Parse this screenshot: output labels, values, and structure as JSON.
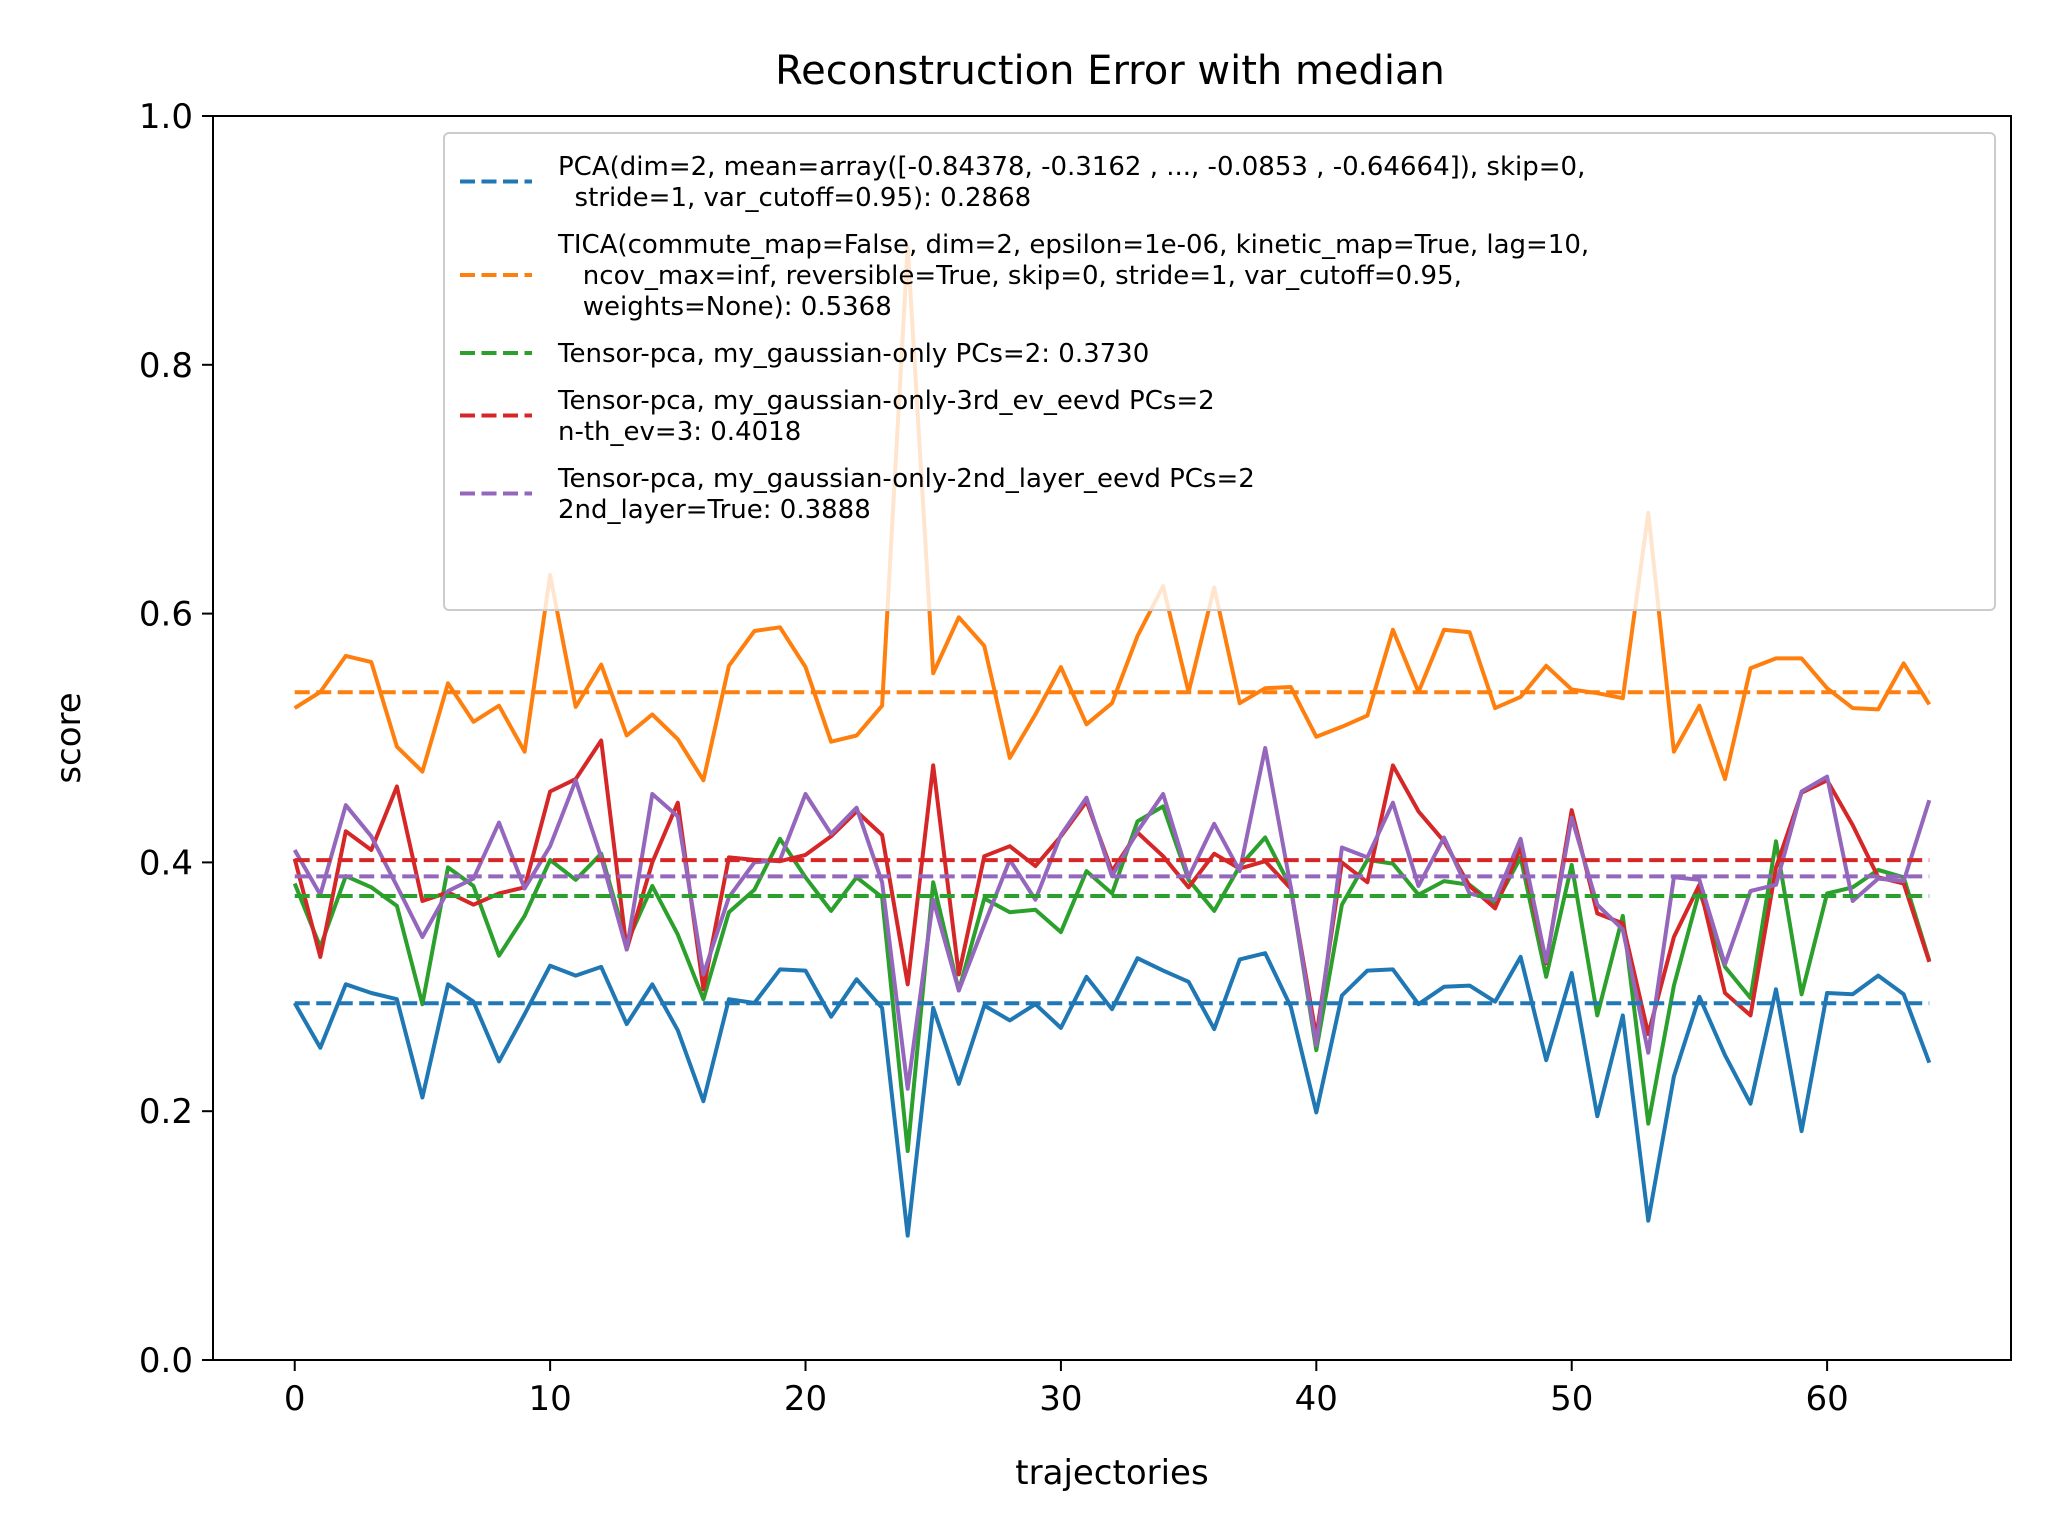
{
  "chart_data": {
    "type": "line",
    "title": "Reconstruction Error with median",
    "xlabel": "trajectories",
    "ylabel": "score",
    "xlim": [
      -3.2,
      67.2
    ],
    "ylim": [
      0.0,
      1.0
    ],
    "xticks": [
      0,
      10,
      20,
      30,
      40,
      50,
      60
    ],
    "yticks": [
      0.0,
      0.2,
      0.4,
      0.6,
      0.8,
      1.0
    ],
    "xtick_labels": [
      "0",
      "10",
      "20",
      "30",
      "40",
      "50",
      "60"
    ],
    "ytick_labels": [
      "0.0",
      "0.2",
      "0.4",
      "0.6",
      "0.8",
      "1.0"
    ],
    "grid": false,
    "legend_position": "top-right",
    "colors": {
      "blue": "#1f77b4",
      "orange": "#ff7f0e",
      "green": "#2ca02c",
      "red": "#d62728",
      "purple": "#9467bd"
    },
    "x": [
      0,
      1,
      2,
      3,
      4,
      5,
      6,
      7,
      8,
      9,
      10,
      11,
      12,
      13,
      14,
      15,
      16,
      17,
      18,
      19,
      20,
      21,
      22,
      23,
      24,
      25,
      26,
      27,
      28,
      29,
      30,
      31,
      32,
      33,
      34,
      35,
      36,
      37,
      38,
      39,
      40,
      41,
      42,
      43,
      44,
      45,
      46,
      47,
      48,
      49,
      50,
      51,
      52,
      53,
      54,
      55,
      56,
      57,
      58,
      59,
      60,
      61,
      62,
      63,
      64
    ],
    "series": [
      {
        "color": "#1f77b4",
        "median": 0.2868,
        "legend": [
          "PCA(dim=2, mean=array([-0.84378, -0.3162 , ..., -0.0853 , -0.64664]), skip=0,",
          "  stride=1, var_cutoff=0.95): 0.2868"
        ],
        "values": [
          0.287,
          0.251,
          0.302,
          0.295,
          0.29,
          0.211,
          0.302,
          0.288,
          0.24,
          0.278,
          0.317,
          0.309,
          0.316,
          0.27,
          0.302,
          0.265,
          0.208,
          0.29,
          0.287,
          0.314,
          0.313,
          0.276,
          0.306,
          0.283,
          0.1,
          0.283,
          0.222,
          0.285,
          0.273,
          0.286,
          0.267,
          0.308,
          0.282,
          0.323,
          0.313,
          0.304,
          0.266,
          0.322,
          0.327,
          0.284,
          0.199,
          0.293,
          0.313,
          0.314,
          0.286,
          0.3,
          0.301,
          0.288,
          0.324,
          0.241,
          0.311,
          0.196,
          0.277,
          0.112,
          0.228,
          0.292,
          0.245,
          0.206,
          0.298,
          0.184,
          0.295,
          0.294,
          0.309,
          0.294,
          0.239
        ]
      },
      {
        "color": "#ff7f0e",
        "median": 0.5368,
        "legend": [
          "TICA(commute_map=False, dim=2, epsilon=1e-06, kinetic_map=True, lag=10,",
          "   ncov_max=inf, reversible=True, skip=0, stride=1, var_cutoff=0.95,",
          "   weights=None): 0.5368"
        ],
        "values": [
          0.524,
          0.537,
          0.566,
          0.561,
          0.493,
          0.473,
          0.544,
          0.513,
          0.526,
          0.489,
          0.631,
          0.525,
          0.559,
          0.502,
          0.519,
          0.499,
          0.466,
          0.558,
          0.586,
          0.589,
          0.557,
          0.497,
          0.502,
          0.526,
          0.895,
          0.552,
          0.597,
          0.574,
          0.484,
          0.519,
          0.557,
          0.511,
          0.528,
          0.582,
          0.622,
          0.537,
          0.621,
          0.528,
          0.54,
          0.541,
          0.501,
          0.509,
          0.518,
          0.587,
          0.537,
          0.587,
          0.585,
          0.524,
          0.533,
          0.558,
          0.539,
          0.536,
          0.532,
          0.681,
          0.489,
          0.526,
          0.467,
          0.556,
          0.564,
          0.564,
          0.54,
          0.524,
          0.523,
          0.56,
          0.527
        ]
      },
      {
        "color": "#2ca02c",
        "median": 0.373,
        "legend": [
          "Tensor-pca, my_gaussian-only PCs=2: 0.3730"
        ],
        "values": [
          0.383,
          0.332,
          0.389,
          0.38,
          0.365,
          0.286,
          0.396,
          0.381,
          0.325,
          0.357,
          0.402,
          0.386,
          0.407,
          0.335,
          0.381,
          0.342,
          0.29,
          0.36,
          0.378,
          0.419,
          0.388,
          0.361,
          0.388,
          0.372,
          0.168,
          0.384,
          0.297,
          0.371,
          0.36,
          0.362,
          0.344,
          0.393,
          0.375,
          0.433,
          0.445,
          0.386,
          0.361,
          0.397,
          0.42,
          0.38,
          0.249,
          0.366,
          0.402,
          0.399,
          0.374,
          0.385,
          0.382,
          0.366,
          0.404,
          0.308,
          0.398,
          0.277,
          0.357,
          0.19,
          0.301,
          0.377,
          0.316,
          0.291,
          0.417,
          0.294,
          0.375,
          0.38,
          0.394,
          0.388,
          0.321
        ]
      },
      {
        "color": "#d62728",
        "median": 0.4018,
        "legend": [
          "Tensor-pca, my_gaussian-only-3rd_ev_eevd PCs=2",
          "n-th_ev=3: 0.4018"
        ],
        "values": [
          0.403,
          0.324,
          0.425,
          0.41,
          0.461,
          0.369,
          0.376,
          0.366,
          0.375,
          0.38,
          0.457,
          0.467,
          0.498,
          0.33,
          0.4,
          0.448,
          0.298,
          0.404,
          0.402,
          0.401,
          0.406,
          0.421,
          0.441,
          0.422,
          0.302,
          0.478,
          0.31,
          0.405,
          0.413,
          0.397,
          0.421,
          0.449,
          0.393,
          0.424,
          0.405,
          0.38,
          0.407,
          0.395,
          0.401,
          0.379,
          0.26,
          0.4,
          0.384,
          0.478,
          0.441,
          0.417,
          0.381,
          0.363,
          0.412,
          0.319,
          0.442,
          0.359,
          0.351,
          0.262,
          0.34,
          0.382,
          0.295,
          0.277,
          0.396,
          0.456,
          0.466,
          0.43,
          0.388,
          0.383,
          0.32
        ]
      },
      {
        "color": "#9467bd",
        "median": 0.3888,
        "legend": [
          "Tensor-pca, my_gaussian-only-2nd_layer_eevd PCs=2",
          "2nd_layer=True: 0.3888"
        ],
        "values": [
          0.41,
          0.374,
          0.446,
          0.421,
          0.381,
          0.34,
          0.377,
          0.387,
          0.432,
          0.379,
          0.413,
          0.466,
          0.404,
          0.33,
          0.455,
          0.437,
          0.31,
          0.372,
          0.4,
          0.402,
          0.455,
          0.423,
          0.444,
          0.384,
          0.218,
          0.37,
          0.297,
          0.35,
          0.402,
          0.37,
          0.422,
          0.452,
          0.389,
          0.425,
          0.455,
          0.388,
          0.431,
          0.393,
          0.492,
          0.38,
          0.253,
          0.412,
          0.404,
          0.448,
          0.381,
          0.42,
          0.375,
          0.37,
          0.419,
          0.32,
          0.436,
          0.366,
          0.346,
          0.247,
          0.388,
          0.386,
          0.318,
          0.377,
          0.382,
          0.457,
          0.469,
          0.369,
          0.387,
          0.385,
          0.45
        ]
      }
    ]
  }
}
